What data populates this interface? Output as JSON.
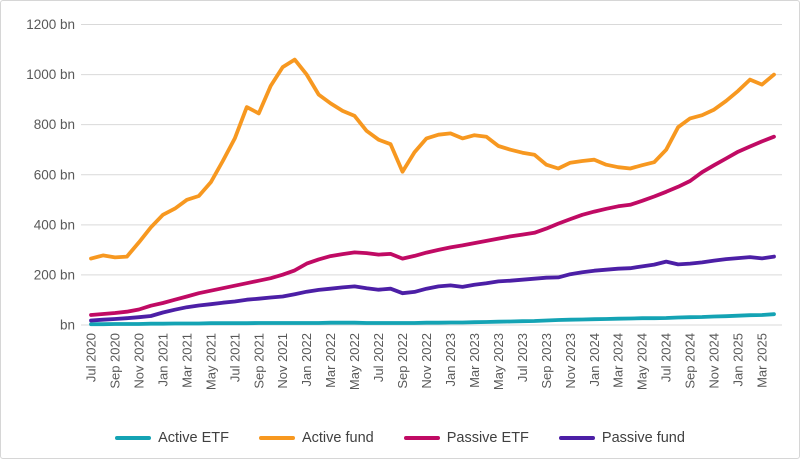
{
  "chart_data": {
    "type": "line",
    "title": "",
    "xlabel": "",
    "ylabel": "",
    "unit": "bn",
    "grid": "horizontal",
    "legend_position": "bottom",
    "ylim": [
      0,
      1200
    ],
    "y_ticks": [
      0,
      200,
      400,
      600,
      800,
      1000,
      1200
    ],
    "y_tick_labels": [
      "bn",
      "200 bn",
      "400 bn",
      "600 bn",
      "800 bn",
      "1000 bn",
      "1200 bn"
    ],
    "x_tick_labels": [
      "Jul 2020",
      "Sep 2020",
      "Nov 2020",
      "Jan 2021",
      "Mar 2021",
      "May 2021",
      "Jul 2021",
      "Sep 2021",
      "Nov 2021",
      "Jan 2022",
      "Mar 2022",
      "May 2022",
      "Jul 2022",
      "Sep 2022",
      "Nov 2022",
      "Jan 2023",
      "Mar 2023",
      "May 2023",
      "Jul 2023",
      "Sep 2023",
      "Nov 2023",
      "Jan 2024",
      "Mar 2024",
      "May 2024",
      "Jul 2024",
      "Sep 2024",
      "Nov 2024",
      "Jan 2025",
      "Mar 2025"
    ],
    "x": [
      "Jul 2020",
      "Aug 2020",
      "Sep 2020",
      "Oct 2020",
      "Nov 2020",
      "Dec 2020",
      "Jan 2021",
      "Feb 2021",
      "Mar 2021",
      "Apr 2021",
      "May 2021",
      "Jun 2021",
      "Jul 2021",
      "Aug 2021",
      "Sep 2021",
      "Oct 2021",
      "Nov 2021",
      "Dec 2021",
      "Jan 2022",
      "Feb 2022",
      "Mar 2022",
      "Apr 2022",
      "May 2022",
      "Jun 2022",
      "Jul 2022",
      "Aug 2022",
      "Sep 2022",
      "Oct 2022",
      "Nov 2022",
      "Dec 2022",
      "Jan 2023",
      "Feb 2023",
      "Mar 2023",
      "Apr 2023",
      "May 2023",
      "Jun 2023",
      "Jul 2023",
      "Aug 2023",
      "Sep 2023",
      "Oct 2023",
      "Nov 2023",
      "Dec 2023",
      "Jan 2024",
      "Feb 2024",
      "Mar 2024",
      "Apr 2024",
      "May 2024",
      "Jun 2024",
      "Jul 2024",
      "Aug 2024",
      "Sep 2024",
      "Oct 2024",
      "Nov 2024",
      "Dec 2024",
      "Jan 2025",
      "Feb 2025",
      "Mar 2025",
      "Apr 2025"
    ],
    "series": [
      {
        "name": "Active ETF",
        "color": "#14a3b4",
        "values": [
          3,
          3,
          4,
          4,
          4,
          5,
          5,
          6,
          6,
          6,
          7,
          7,
          7,
          7,
          8,
          8,
          8,
          8,
          8,
          8,
          9,
          9,
          9,
          8,
          8,
          8,
          8,
          8,
          9,
          9,
          10,
          10,
          11,
          12,
          13,
          14,
          15,
          16,
          18,
          20,
          21,
          22,
          23,
          24,
          25,
          26,
          27,
          27,
          28,
          30,
          31,
          32,
          34,
          35,
          37,
          39,
          40,
          43
        ]
      },
      {
        "name": "Active fund",
        "color": "#f79820",
        "values": [
          265,
          278,
          270,
          273,
          330,
          390,
          440,
          465,
          500,
          515,
          570,
          655,
          745,
          870,
          845,
          955,
          1030,
          1060,
          1000,
          920,
          885,
          855,
          835,
          775,
          740,
          722,
          612,
          690,
          745,
          760,
          765,
          745,
          758,
          752,
          715,
          700,
          688,
          680,
          640,
          625,
          648,
          655,
          660,
          640,
          630,
          625,
          638,
          650,
          700,
          790,
          825,
          838,
          860,
          895,
          935,
          980,
          960,
          1000
        ]
      },
      {
        "name": "Passive ETF",
        "color": "#c00a64",
        "values": [
          40,
          44,
          48,
          53,
          62,
          77,
          88,
          101,
          114,
          127,
          137,
          147,
          157,
          167,
          177,
          187,
          201,
          218,
          245,
          262,
          275,
          283,
          290,
          287,
          281,
          284,
          265,
          276,
          289,
          300,
          310,
          318,
          327,
          336,
          345,
          354,
          361,
          368,
          385,
          405,
          423,
          440,
          453,
          464,
          474,
          480,
          496,
          513,
          532,
          552,
          575,
          610,
          638,
          665,
          692,
          713,
          733,
          752
        ]
      },
      {
        "name": "Passive fund",
        "color": "#4c1fa6",
        "values": [
          18,
          21,
          24,
          27,
          31,
          36,
          50,
          61,
          71,
          78,
          83,
          89,
          94,
          101,
          105,
          110,
          114,
          123,
          133,
          140,
          145,
          150,
          154,
          147,
          141,
          145,
          127,
          132,
          145,
          154,
          158,
          152,
          161,
          167,
          174,
          177,
          181,
          185,
          189,
          190,
          203,
          211,
          217,
          221,
          225,
          227,
          234,
          241,
          253,
          242,
          245,
          250,
          257,
          263,
          267,
          271,
          266,
          273
        ]
      }
    ],
    "axis_text_color": "#595959",
    "gridline_color": "#d9d9d9"
  }
}
